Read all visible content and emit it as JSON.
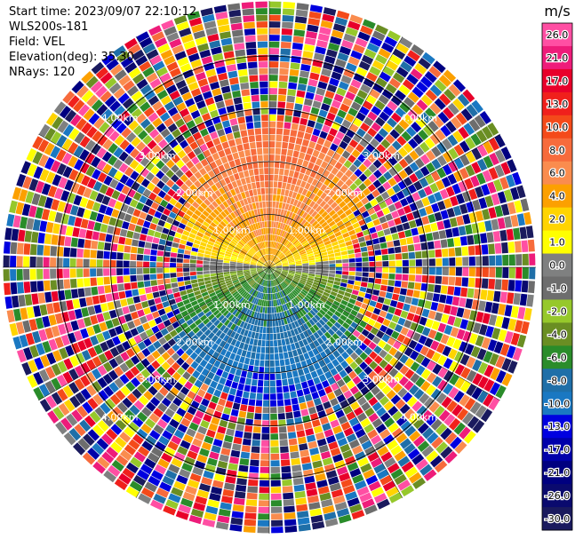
{
  "header": {
    "start_time": "Start time: 2023/09/07 22:10:12",
    "instrument": "WLS200s-181",
    "field": "Field: VEL",
    "elevation": "Elevation(deg): 35.30",
    "nrays": "NRays: 120"
  },
  "colorbar": {
    "unit": "m/s",
    "ticks": [
      "26.0",
      "21.0",
      "17.0",
      "13.0",
      "10.0",
      "8.0",
      "6.0",
      "4.0",
      "2.0",
      "1.0",
      "0.0",
      "-1.0",
      "-2.0",
      "-4.0",
      "-6.0",
      "-8.0",
      "-10.0",
      "-13.0",
      "-17.0",
      "-21.0",
      "-26.0",
      "-30.0"
    ],
    "colors": [
      "#ff4fa3",
      "#ee1c7a",
      "#e8002a",
      "#f0201c",
      "#f44a1a",
      "#f76b3c",
      "#fa8c4e",
      "#fca000",
      "#ffd400",
      "#ffff00",
      "#7f8080",
      "#6d6d6d",
      "#96c82b",
      "#6a8e23",
      "#2a8c2a",
      "#1f6fa8",
      "#1a78c2",
      "#0000e0",
      "#0000aa",
      "#000080",
      "#0a0a6e",
      "#1a1a5e"
    ]
  },
  "chart_data": {
    "type": "polar-ppi",
    "field": "VEL",
    "unit": "m/s",
    "nrays": 120,
    "range_rings_km": [
      1.0,
      2.0,
      3.0,
      4.0
    ],
    "range_ring_labels": [
      "1.00km",
      "2.00km",
      "3.00km",
      "4.00km"
    ],
    "quadrants": [
      {
        "sector": "north",
        "dominant": "positive",
        "range_m_s": [
          2,
          8
        ],
        "valid_extent_km": 2.6
      },
      {
        "sector": "south",
        "dominant": "negative",
        "range_m_s": [
          -10,
          -2
        ],
        "valid_extent_km": 2.4
      },
      {
        "sector": "east-west",
        "dominant": "near-zero",
        "range_m_s": [
          -1,
          1
        ],
        "valid_extent_km": 1.2
      }
    ],
    "noise_beyond_km": 2.6,
    "grid": true
  }
}
